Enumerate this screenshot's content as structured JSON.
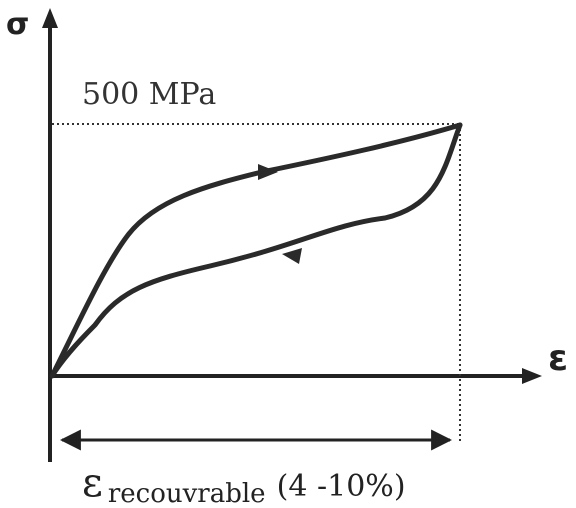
{
  "axes": {
    "y_symbol": "σ",
    "x_symbol": "ε"
  },
  "stress_level": "500 MPa",
  "recoverable_strain": {
    "symbol": "ε",
    "subscript": "recouvrable",
    "range": "(4 -10%)"
  }
}
